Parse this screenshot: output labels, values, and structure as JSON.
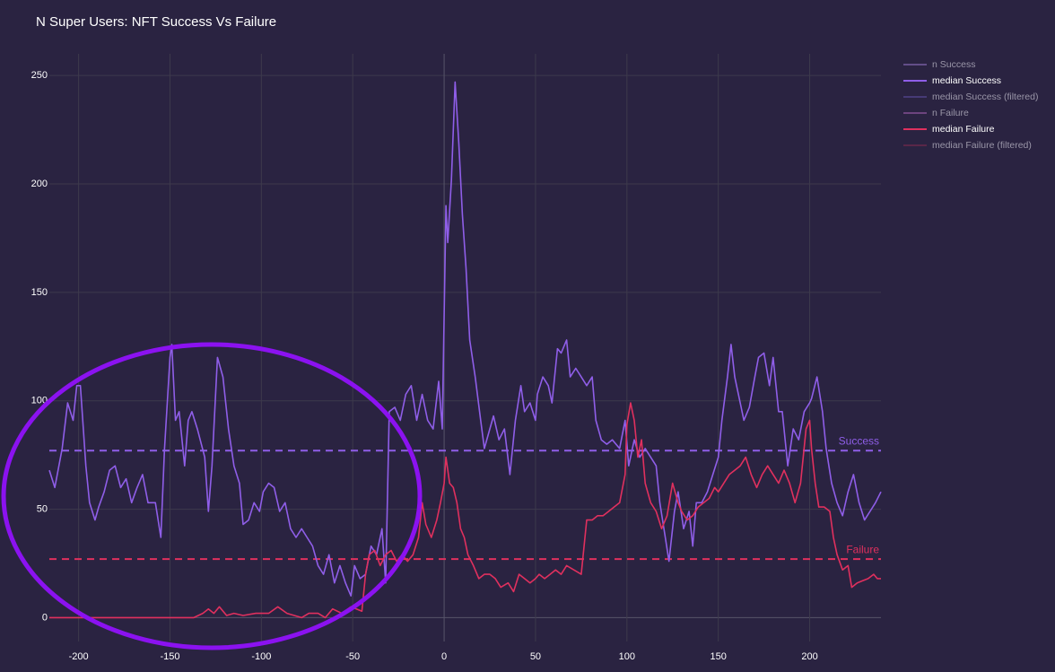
{
  "chart_data": {
    "type": "line",
    "title": "N Super Users: NFT Success Vs Failure",
    "xlim": [
      -216,
      239
    ],
    "xticks": [
      -200,
      -150,
      -100,
      -50,
      0,
      50,
      100,
      150,
      200
    ],
    "ylim": [
      -11,
      260
    ],
    "yticks": [
      0,
      50,
      100,
      150,
      200,
      250
    ],
    "grid": true,
    "legend": "top-right",
    "series": [
      {
        "name": "n Success",
        "color": "#8a6bb8",
        "visible": false
      },
      {
        "name": "median Success",
        "color": "#8f5ee8",
        "visible": true,
        "x": [
          -216,
          -213,
          -209,
          -206,
          -203,
          -201,
          -199,
          -196,
          -194,
          -191,
          -189,
          -186,
          -183,
          -180,
          -177,
          -174,
          -171,
          -168,
          -165,
          -162,
          -158,
          -155,
          -153,
          -150,
          -149,
          -147,
          -145,
          -142,
          -140,
          -138,
          -135,
          -131,
          -129,
          -127,
          -124,
          -121,
          -118,
          -115,
          -112,
          -110,
          -107,
          -104,
          -101,
          -99,
          -96,
          -93,
          -90,
          -87,
          -84,
          -81,
          -78,
          -75,
          -72,
          -69,
          -66,
          -63,
          -60,
          -57,
          -54,
          -51,
          -49,
          -46,
          -43,
          -40,
          -37,
          -34,
          -32,
          -30,
          -27,
          -24,
          -21,
          -18,
          -15,
          -12,
          -9,
          -6,
          -3,
          -1,
          1,
          2,
          4,
          6,
          8,
          10,
          12,
          14,
          17,
          20,
          22,
          25,
          27,
          30,
          33,
          36,
          39,
          42,
          44,
          47,
          50,
          51,
          54,
          57,
          59,
          62,
          64,
          67,
          69,
          72,
          75,
          78,
          81,
          83,
          86,
          89,
          92,
          96,
          99,
          101,
          104,
          107,
          110,
          113,
          116,
          118,
          121,
          123,
          126,
          128,
          131,
          134,
          136,
          138,
          141,
          144,
          147,
          150,
          152,
          155,
          157,
          159,
          161,
          164,
          167,
          170,
          172,
          175,
          178,
          180,
          183,
          185,
          188,
          191,
          194,
          197,
          200,
          201,
          204,
          207,
          209,
          212,
          215,
          218,
          221,
          224,
          227,
          230,
          233,
          236,
          239
        ],
        "values": [
          68,
          60,
          78,
          99,
          91,
          107,
          107,
          70,
          53,
          45,
          51,
          58,
          68,
          70,
          60,
          64,
          53,
          60,
          66,
          53,
          53,
          37,
          78,
          120,
          126,
          91,
          95,
          70,
          91,
          95,
          87,
          74,
          49,
          70,
          120,
          111,
          87,
          70,
          62,
          43,
          45,
          53,
          49,
          58,
          62,
          60,
          49,
          53,
          41,
          37,
          41,
          37,
          33,
          24,
          20,
          29,
          16,
          24,
          16,
          10,
          24,
          18,
          20,
          33,
          29,
          41,
          16,
          95,
          97,
          91,
          103,
          107,
          91,
          103,
          91,
          87,
          109,
          87,
          190,
          173,
          202,
          247,
          219,
          186,
          161,
          128,
          111,
          91,
          78,
          87,
          93,
          82,
          87,
          66,
          91,
          107,
          95,
          99,
          91,
          103,
          111,
          107,
          99,
          124,
          122,
          128,
          111,
          115,
          111,
          107,
          111,
          91,
          82,
          80,
          82,
          78,
          91,
          70,
          82,
          74,
          78,
          74,
          70,
          53,
          37,
          26,
          49,
          58,
          41,
          49,
          33,
          53,
          53,
          58,
          66,
          74,
          91,
          111,
          126,
          111,
          103,
          91,
          97,
          111,
          120,
          122,
          107,
          120,
          95,
          95,
          70,
          87,
          82,
          95,
          99,
          101,
          111,
          95,
          78,
          62,
          53,
          47,
          58,
          66,
          53,
          45,
          49,
          53,
          58
        ]
      },
      {
        "name": "median Success (filtered)",
        "color": "#5a4a9a",
        "visible": false
      },
      {
        "name": "n Failure",
        "color": "#9a5aa8",
        "visible": false
      },
      {
        "name": "median Failure",
        "color": "#e0305e",
        "visible": true,
        "x": [
          -216,
          -137,
          -132,
          -129,
          -126,
          -123,
          -119,
          -115,
          -110,
          -103,
          -96,
          -91,
          -86,
          -78,
          -74,
          -69,
          -65,
          -61,
          -56,
          -51,
          -48,
          -45,
          -43,
          -41,
          -38,
          -35,
          -32,
          -29,
          -26,
          -23,
          -20,
          -17,
          -14,
          -12,
          -10,
          -7,
          -4,
          -2,
          0,
          1,
          3,
          5,
          7,
          9,
          11,
          13,
          16,
          19,
          22,
          25,
          28,
          31,
          35,
          38,
          41,
          44,
          47,
          50,
          52,
          55,
          58,
          61,
          64,
          67,
          71,
          75,
          78,
          81,
          84,
          87,
          90,
          93,
          96,
          99,
          100,
          102,
          104,
          106,
          108,
          110,
          113,
          116,
          119,
          122,
          125,
          128,
          130,
          133,
          136,
          139,
          142,
          145,
          148,
          150,
          153,
          156,
          159,
          162,
          165,
          168,
          171,
          174,
          177,
          180,
          183,
          186,
          189,
          192,
          195,
          198,
          200,
          201,
          203,
          205,
          208,
          211,
          213,
          215,
          218,
          221,
          223,
          226,
          229,
          232,
          235,
          237,
          239
        ],
        "values": [
          0,
          0,
          2,
          4,
          2,
          5,
          1,
          2,
          1,
          2,
          2,
          5,
          2,
          0,
          2,
          2,
          0,
          4,
          2,
          5,
          4,
          3,
          20,
          29,
          31,
          24,
          29,
          31,
          26,
          29,
          26,
          29,
          37,
          53,
          43,
          37,
          45,
          53,
          62,
          74,
          62,
          60,
          53,
          41,
          37,
          29,
          24,
          18,
          20,
          20,
          18,
          14,
          16,
          12,
          20,
          18,
          16,
          18,
          20,
          18,
          20,
          22,
          20,
          24,
          22,
          20,
          45,
          45,
          47,
          47,
          49,
          51,
          53,
          66,
          89,
          99,
          91,
          74,
          82,
          62,
          53,
          49,
          41,
          47,
          62,
          53,
          49,
          45,
          47,
          51,
          53,
          55,
          60,
          58,
          62,
          66,
          68,
          70,
          74,
          66,
          60,
          66,
          70,
          66,
          62,
          68,
          62,
          53,
          62,
          87,
          91,
          78,
          62,
          51,
          51,
          49,
          37,
          29,
          22,
          24,
          14,
          16,
          17,
          18,
          20,
          18,
          18
        ]
      },
      {
        "name": "median Failure (filtered)",
        "color": "#7a2a4e",
        "visible": false
      }
    ],
    "reference_lines": [
      {
        "label": "Success",
        "value": 77,
        "color": "#8f5ee8"
      },
      {
        "label": "Failure",
        "value": 27,
        "color": "#e0305e"
      }
    ]
  }
}
